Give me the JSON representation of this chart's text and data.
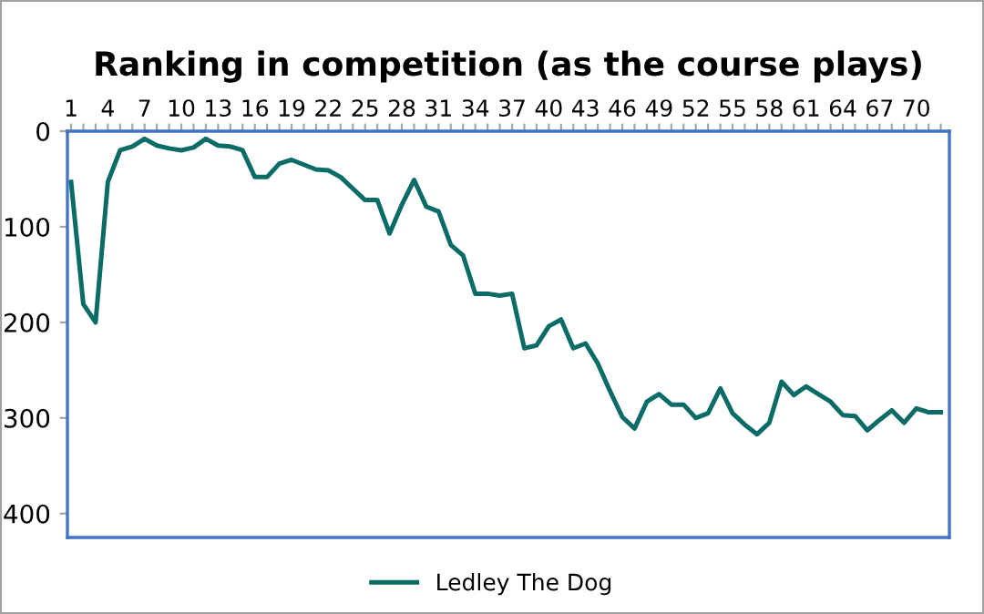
{
  "chart_data": {
    "type": "line",
    "title": "Ranking in competition (as the course plays)",
    "categories": [
      "1",
      null,
      null,
      "4",
      null,
      null,
      "7",
      null,
      null,
      "10",
      null,
      null,
      "13",
      null,
      null,
      "16",
      null,
      null,
      "19",
      null,
      null,
      "22",
      null,
      null,
      "25",
      null,
      null,
      "28",
      null,
      null,
      "31",
      null,
      null,
      "34",
      null,
      null,
      "37",
      null,
      null,
      "40",
      null,
      null,
      "43",
      null,
      null,
      "46",
      null,
      null,
      "49",
      null,
      null,
      "52",
      null,
      null,
      "55",
      null,
      null,
      "58",
      null,
      null,
      "61",
      null,
      null,
      "64",
      null,
      null,
      "67",
      null,
      null,
      "70",
      null,
      null
    ],
    "series": [
      {
        "name": "Ledley The Dog",
        "color": "#0b6b66",
        "values": [
          53,
          181,
          200,
          53,
          20,
          16,
          8,
          15,
          18,
          20,
          17,
          8,
          15,
          16,
          20,
          48,
          48,
          34,
          30,
          35,
          40,
          41,
          48,
          60,
          72,
          72,
          107,
          77,
          51,
          79,
          84,
          119,
          130,
          170,
          170,
          172,
          170,
          227,
          224,
          204,
          197,
          227,
          222,
          243,
          272,
          299,
          311,
          283,
          275,
          286,
          286,
          300,
          295,
          269,
          295,
          307,
          317,
          305,
          262,
          276,
          267,
          275,
          283,
          297,
          298,
          313,
          302,
          292,
          305,
          290,
          294,
          294
        ]
      }
    ],
    "ylim": [
      425,
      0
    ],
    "yticks": [
      0,
      100,
      200,
      300,
      400
    ],
    "grid": false,
    "legend": "bottom",
    "marker": "none",
    "line_style": "solid"
  }
}
